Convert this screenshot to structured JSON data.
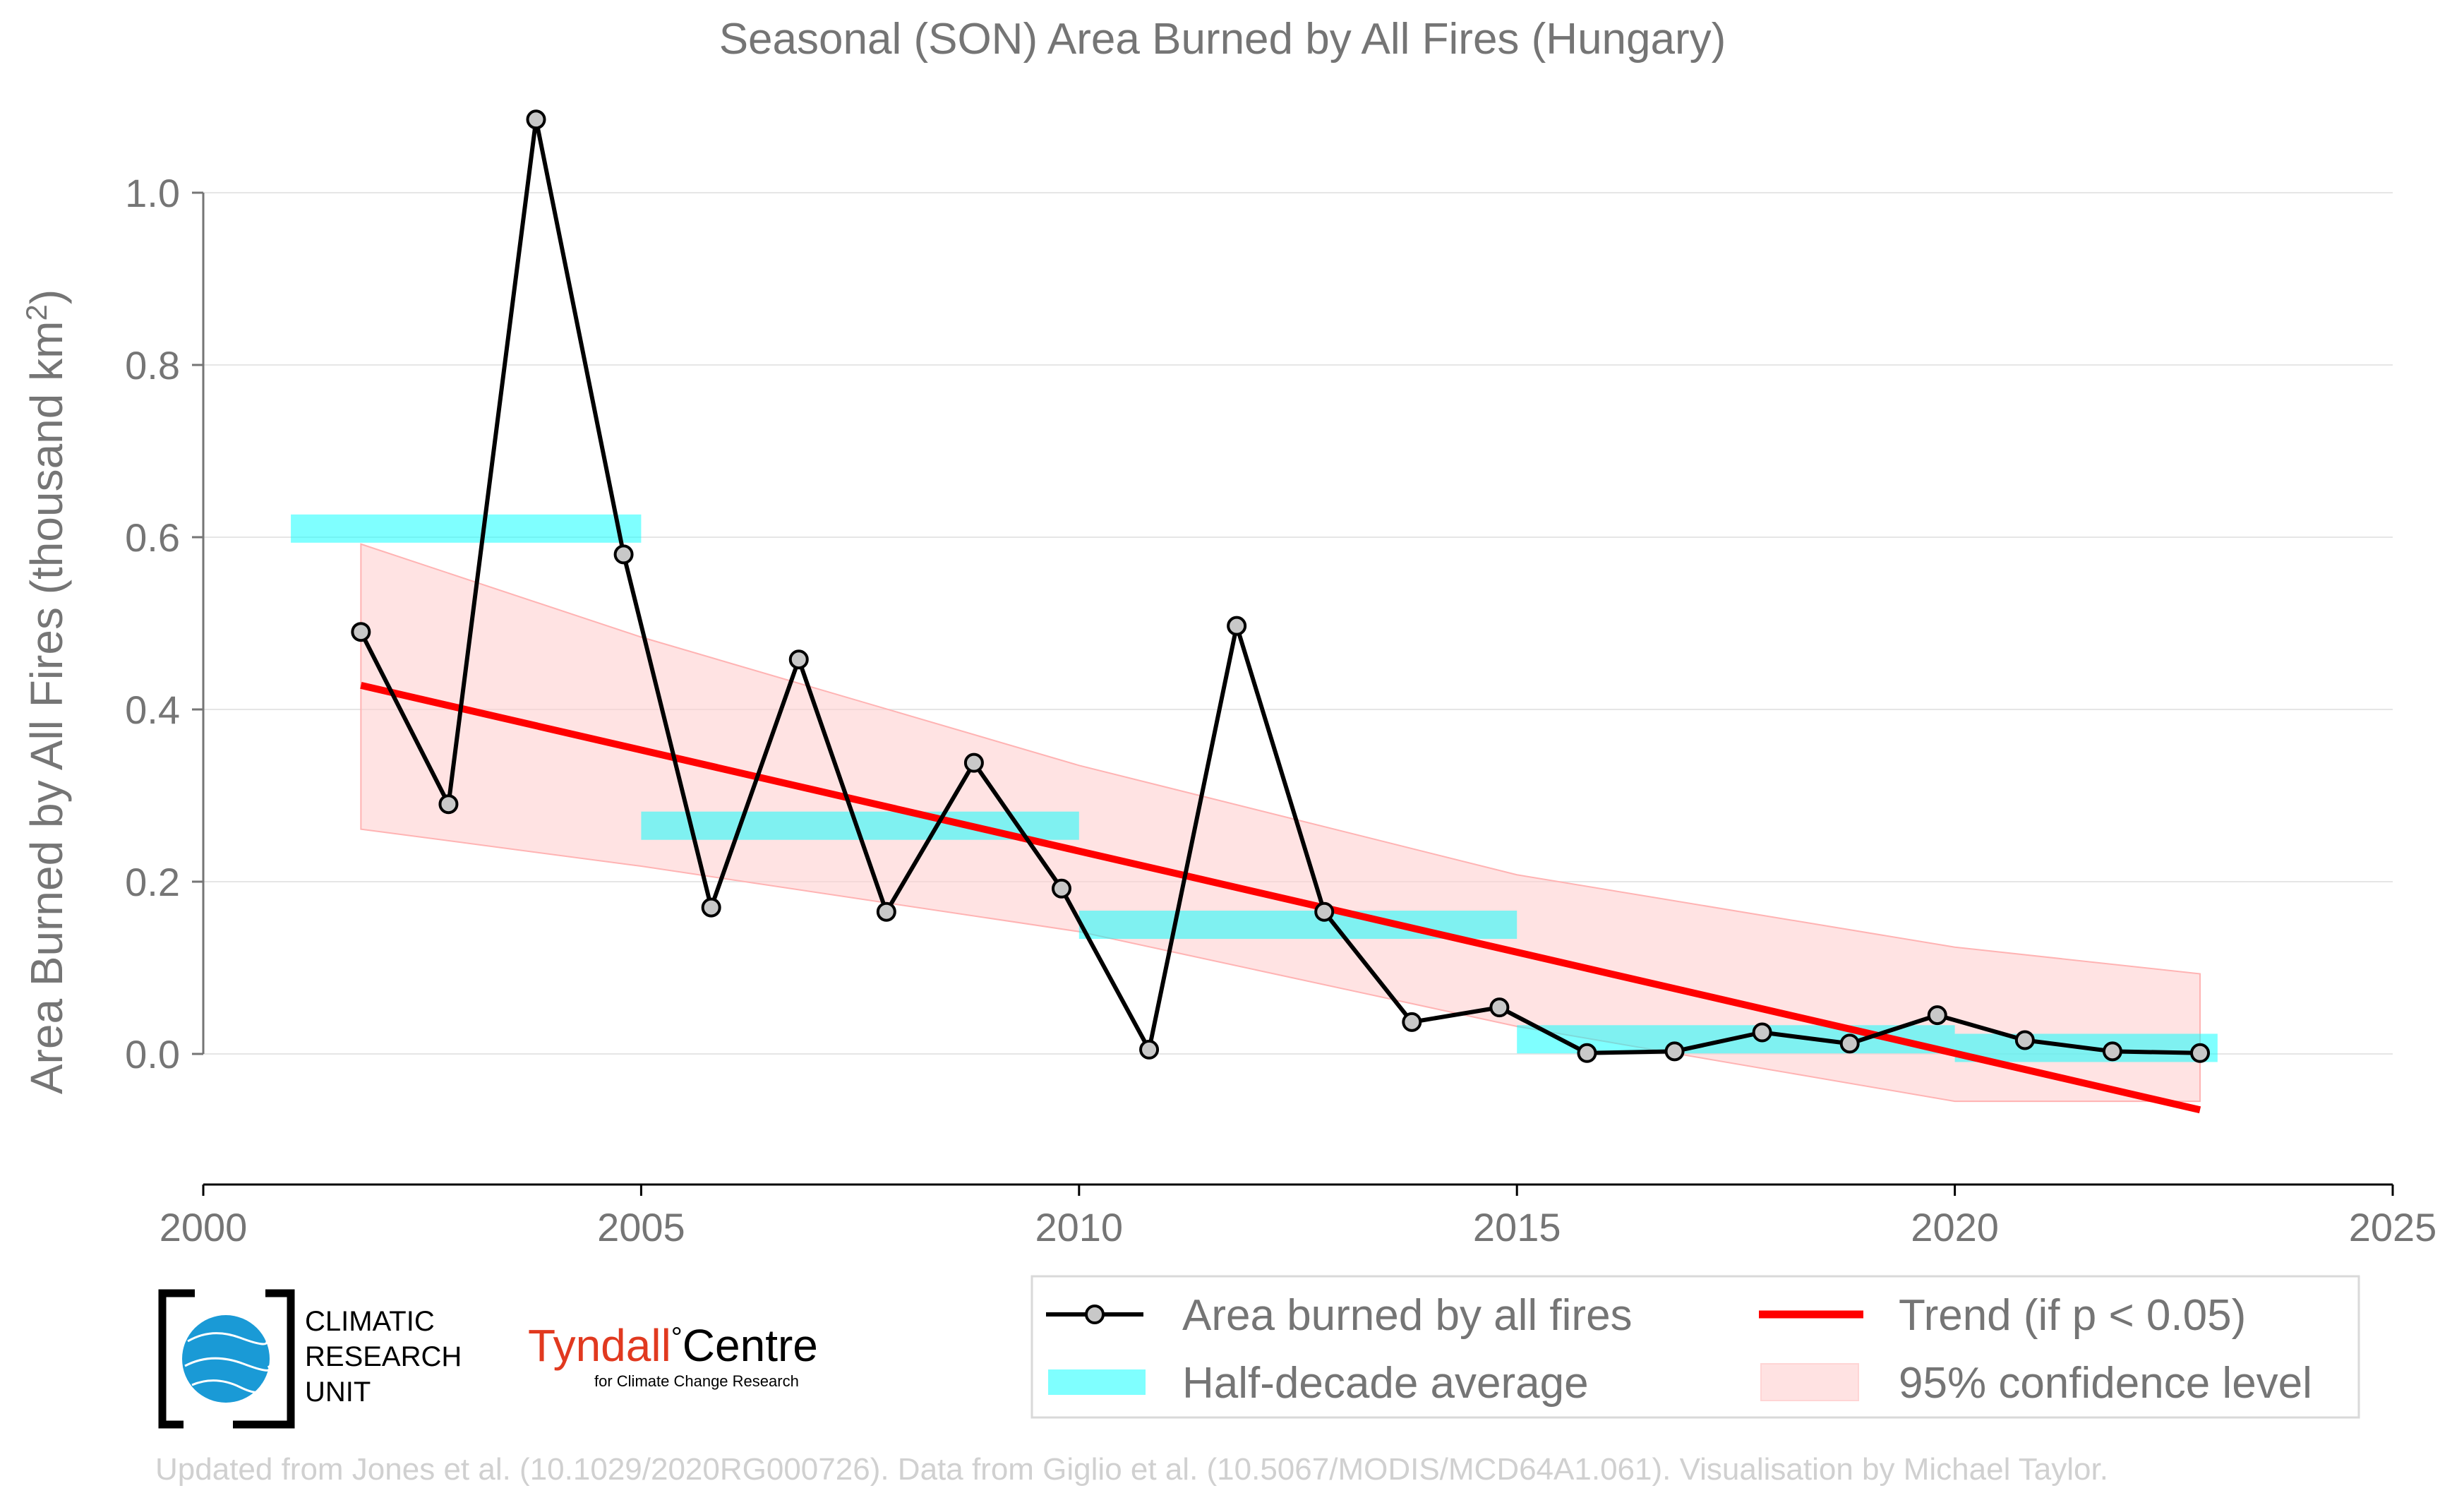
{
  "chart_data": {
    "type": "line",
    "title": "Seasonal (SON) Area Burned by All Fires (Hungary)",
    "xlabel": "",
    "ylabel_main": "Area Burned by All Fires (thousand km",
    "ylabel_sup": "2",
    "ylabel_end": ")",
    "xlim": [
      2000,
      2025
    ],
    "ylim": [
      -0.15,
      1.1
    ],
    "x_ticks": [
      2000,
      2005,
      2010,
      2015,
      2020,
      2025
    ],
    "y_ticks": [
      0.0,
      0.2,
      0.4,
      0.6,
      0.8,
      1.0
    ],
    "y_tick_labels": [
      "0.0",
      "0.2",
      "0.4",
      "0.6",
      "0.8",
      "1.0"
    ],
    "grid": "horizontal",
    "series": [
      {
        "name": "Area burned by all fires",
        "x": [
          2001.8,
          2002.8,
          2003.8,
          2004.8,
          2005.8,
          2006.8,
          2007.8,
          2008.8,
          2009.8,
          2010.8,
          2011.8,
          2012.8,
          2013.8,
          2014.8,
          2015.8,
          2016.8,
          2017.8,
          2018.8,
          2019.8,
          2020.8,
          2021.8,
          2022.8
        ],
        "values": [
          0.49,
          0.29,
          1.085,
          0.58,
          0.17,
          0.458,
          0.165,
          0.338,
          0.192,
          0.005,
          0.497,
          0.165,
          0.037,
          0.054,
          0.001,
          0.003,
          0.025,
          0.012,
          0.045,
          0.016,
          0.003,
          0.001
        ],
        "color": "#000000",
        "marker_color": "#c8c8c8"
      }
    ],
    "half_decade_average": {
      "name": "Half-decade average",
      "color": "#00ffff",
      "segments": [
        {
          "x": [
            2001.0,
            2005.0
          ],
          "value": 0.61
        },
        {
          "x": [
            2005.0,
            2010.0
          ],
          "value": 0.265
        },
        {
          "x": [
            2010.0,
            2015.0
          ],
          "value": 0.15
        },
        {
          "x": [
            2015.0,
            2020.0
          ],
          "value": 0.017
        },
        {
          "x": [
            2020.0,
            2023.0
          ],
          "value": 0.007
        }
      ]
    },
    "trend": {
      "name": "Trend (if p < 0.05)",
      "color": "#ff0000",
      "x": [
        2001.8,
        2022.8
      ],
      "values": [
        0.428,
        -0.065
      ]
    },
    "confidence": {
      "name": "95% confidence level",
      "color": "#ffcccc",
      "x": [
        2001.8,
        2005.0,
        2010.0,
        2015.0,
        2020.0,
        2022.8
      ],
      "upper": [
        0.592,
        0.484,
        0.335,
        0.208,
        0.124,
        0.093
      ],
      "lower": [
        0.261,
        0.218,
        0.142,
        0.032,
        -0.055,
        -0.055
      ]
    },
    "legend_placement": "bottom-right"
  },
  "legend": {
    "items": [
      {
        "label": "Area burned by all fires"
      },
      {
        "label": "Trend (if p < 0.05)"
      },
      {
        "label": "Half-decade average"
      },
      {
        "label": "95% confidence level"
      }
    ]
  },
  "logos": {
    "cru_line1": "CLIMATIC",
    "cru_line2": "RESEARCH",
    "cru_line3": "UNIT",
    "tyndall_word1": "Tyndall",
    "tyndall_degree": "°",
    "tyndall_word2": "Centre",
    "tyndall_sub": "for Climate Change Research"
  },
  "credit": "Updated from Jones et al. (10.1029/2020RG000726). Data from Giglio et al. (10.5067/MODIS/MCD64A1.061). Visualisation by Michael Taylor."
}
